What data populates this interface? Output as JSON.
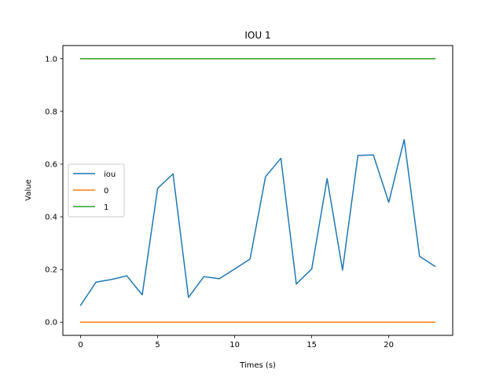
{
  "chart_data": {
    "type": "line",
    "title": "IOU 1",
    "xlabel": "Times (s)",
    "ylabel": "Value",
    "xlim": [
      -1.15,
      24.15
    ],
    "ylim": [
      -0.05,
      1.05
    ],
    "xticks": [
      0,
      5,
      10,
      15,
      20
    ],
    "yticks": [
      "0.0",
      "0.2",
      "0.4",
      "0.6",
      "0.8",
      "1.0"
    ],
    "grid": false,
    "legend_position": "center-left",
    "series": [
      {
        "name": "iou",
        "color": "#1f77b4",
        "x": [
          0,
          1,
          2,
          3,
          4,
          5,
          6,
          7,
          8,
          9,
          10,
          11,
          12,
          13,
          14,
          15,
          16,
          17,
          18,
          19,
          20,
          21,
          22,
          23
        ],
        "values": [
          0.064,
          0.152,
          0.162,
          0.176,
          0.104,
          0.508,
          0.563,
          0.094,
          0.173,
          0.165,
          0.202,
          0.24,
          0.552,
          0.622,
          0.145,
          0.202,
          0.545,
          0.198,
          0.633,
          0.635,
          0.455,
          0.693,
          0.25,
          0.212
        ]
      },
      {
        "name": "0",
        "color": "#ff7f0e",
        "x": [
          0,
          1,
          2,
          3,
          4,
          5,
          6,
          7,
          8,
          9,
          10,
          11,
          12,
          13,
          14,
          15,
          16,
          17,
          18,
          19,
          20,
          21,
          22,
          23
        ],
        "values": [
          0,
          0,
          0,
          0,
          0,
          0,
          0,
          0,
          0,
          0,
          0,
          0,
          0,
          0,
          0,
          0,
          0,
          0,
          0,
          0,
          0,
          0,
          0,
          0
        ]
      },
      {
        "name": "1",
        "color": "#2ca02c",
        "x": [
          0,
          1,
          2,
          3,
          4,
          5,
          6,
          7,
          8,
          9,
          10,
          11,
          12,
          13,
          14,
          15,
          16,
          17,
          18,
          19,
          20,
          21,
          22,
          23
        ],
        "values": [
          1,
          1,
          1,
          1,
          1,
          1,
          1,
          1,
          1,
          1,
          1,
          1,
          1,
          1,
          1,
          1,
          1,
          1,
          1,
          1,
          1,
          1,
          1,
          1
        ]
      }
    ]
  }
}
